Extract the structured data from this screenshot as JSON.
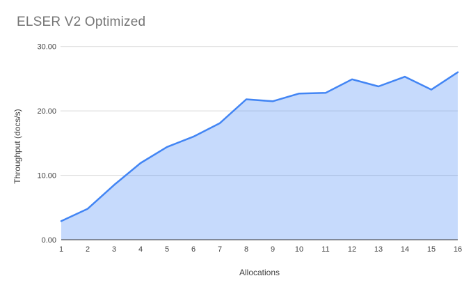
{
  "chart_data": {
    "type": "area",
    "title": "ELSER V2 Optimized",
    "xlabel": "Allocations",
    "ylabel": "Throughput (docs/s)",
    "x": [
      1,
      2,
      3,
      4,
      5,
      6,
      7,
      8,
      9,
      10,
      11,
      12,
      13,
      14,
      15,
      16
    ],
    "series": [
      {
        "name": "Throughput (docs/s)",
        "values": [
          2.9,
          4.8,
          8.5,
          11.9,
          14.4,
          16.0,
          18.1,
          21.8,
          21.5,
          22.7,
          22.8,
          24.9,
          23.8,
          25.3,
          23.3,
          26.0
        ]
      }
    ],
    "ylim": [
      0,
      30
    ],
    "yticks": [
      0,
      10,
      20,
      30
    ],
    "ytick_labels": [
      "0.00",
      "10.00",
      "20.00",
      "30.00"
    ],
    "grid": true,
    "legend": "none",
    "background": "#ffffff",
    "colors": {
      "line": "#4285f4",
      "fill": "rgba(66,133,244,0.3)",
      "grid": "#d9d9d9",
      "axis_line": "#333333",
      "title_text": "#757575",
      "tick_text": "#424242",
      "axis_title_text": "#424242"
    }
  }
}
